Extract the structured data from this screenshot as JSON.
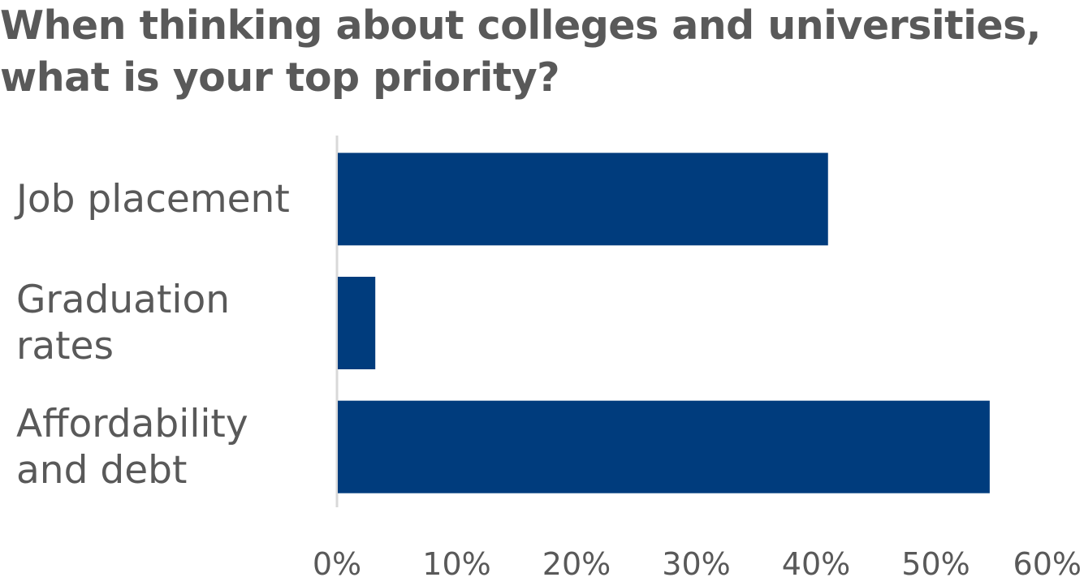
{
  "chart_data": {
    "type": "bar",
    "orientation": "horizontal",
    "title": "When thinking about colleges and universities, what is your top priority?",
    "categories": [
      "Job placement",
      "Graduation rates",
      "Affordability and debt"
    ],
    "category_lines": [
      [
        "Job placement"
      ],
      [
        "Graduation",
        "rates"
      ],
      [
        "Affordability",
        "and debt"
      ]
    ],
    "values": [
      41,
      3.2,
      54.5
    ],
    "xlim": [
      0,
      60
    ],
    "ticks": [
      "0%",
      "10%",
      "20%",
      "30%",
      "40%",
      "50%",
      "60%"
    ],
    "tick_values": [
      0,
      10,
      20,
      30,
      40,
      50,
      60
    ],
    "bar_color": "#003C7D",
    "axis_color": "#D9D9D9",
    "grid": false,
    "legend": "none"
  }
}
